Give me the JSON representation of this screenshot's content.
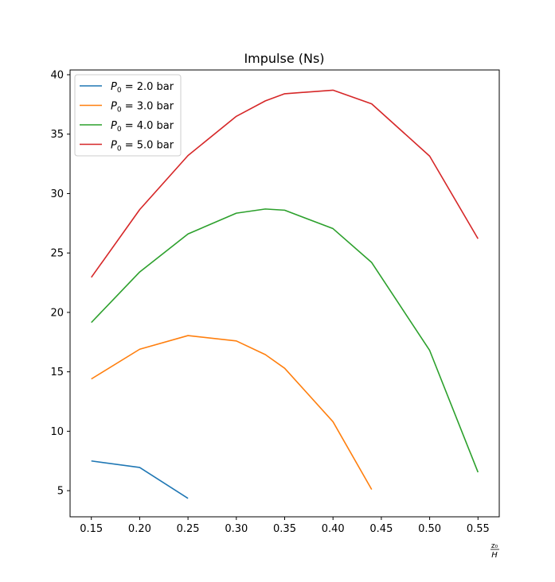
{
  "chart_data": {
    "type": "line",
    "title": "Impulse (Ns)",
    "xlabel_numerator": "z₀",
    "xlabel_denominator": "H",
    "xlim": [
      0.128,
      0.572
    ],
    "ylim": [
      2.8,
      40.4
    ],
    "xticks": [
      0.15,
      0.2,
      0.25,
      0.3,
      0.35,
      0.4,
      0.45,
      0.5,
      0.55
    ],
    "xtick_labels": [
      "0.15",
      "0.20",
      "0.25",
      "0.30",
      "0.35",
      "0.40",
      "0.45",
      "0.50",
      "0.55"
    ],
    "yticks": [
      5,
      10,
      15,
      20,
      25,
      30,
      35,
      40
    ],
    "ytick_labels": [
      "5",
      "10",
      "15",
      "20",
      "25",
      "30",
      "35",
      "40"
    ],
    "grid": false,
    "legend_position": "top-left",
    "series": [
      {
        "name": "P₀ = 2.0 bar",
        "legend_var": "P",
        "legend_sub": "0",
        "legend_rest": " = 2.0 bar",
        "color": "#1f77b4",
        "points": [
          [
            0.15,
            7.5
          ],
          [
            0.2,
            6.95
          ],
          [
            0.25,
            4.35
          ]
        ]
      },
      {
        "name": "P₀ = 3.0 bar",
        "legend_var": "P",
        "legend_sub": "0",
        "legend_rest": " = 3.0 bar",
        "color": "#ff7f0e",
        "points": [
          [
            0.15,
            14.4
          ],
          [
            0.2,
            16.9
          ],
          [
            0.25,
            18.05
          ],
          [
            0.3,
            17.6
          ],
          [
            0.33,
            16.45
          ],
          [
            0.35,
            15.3
          ],
          [
            0.4,
            10.8
          ],
          [
            0.44,
            5.1
          ]
        ]
      },
      {
        "name": "P₀ = 4.0 bar",
        "legend_var": "P",
        "legend_sub": "0",
        "legend_rest": " = 4.0 bar",
        "color": "#2ca02c",
        "points": [
          [
            0.15,
            19.15
          ],
          [
            0.2,
            23.4
          ],
          [
            0.25,
            26.6
          ],
          [
            0.3,
            28.35
          ],
          [
            0.33,
            28.7
          ],
          [
            0.35,
            28.6
          ],
          [
            0.4,
            27.05
          ],
          [
            0.44,
            24.2
          ],
          [
            0.5,
            16.8
          ],
          [
            0.55,
            6.55
          ]
        ]
      },
      {
        "name": "P₀ = 5.0 bar",
        "legend_var": "P",
        "legend_sub": "0",
        "legend_rest": " = 5.0 bar",
        "color": "#d62728",
        "points": [
          [
            0.15,
            22.95
          ],
          [
            0.2,
            28.65
          ],
          [
            0.25,
            33.2
          ],
          [
            0.3,
            36.5
          ],
          [
            0.33,
            37.8
          ],
          [
            0.35,
            38.4
          ],
          [
            0.4,
            38.7
          ],
          [
            0.44,
            37.55
          ],
          [
            0.5,
            33.15
          ],
          [
            0.55,
            26.2
          ]
        ]
      }
    ]
  }
}
